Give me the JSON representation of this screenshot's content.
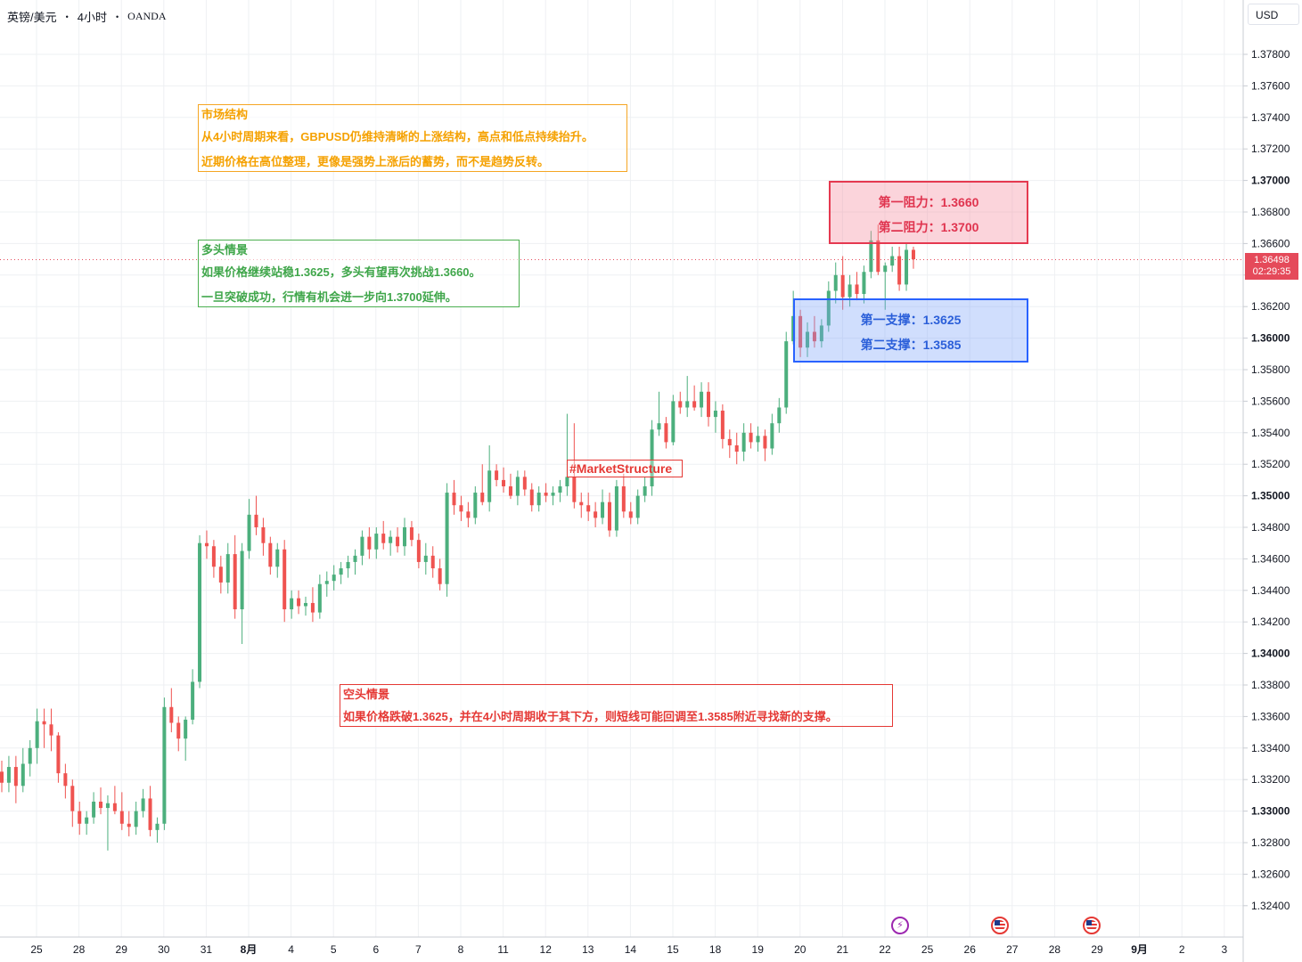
{
  "header": {
    "symbol": "英镑/美元",
    "timeframe": "4小时",
    "broker": "OANDA",
    "separator": "•"
  },
  "currency_button": "USD",
  "last_price": {
    "value": "1.36498",
    "countdown": "02:29:35",
    "color": "#e54a5a"
  },
  "notes": {
    "market_structure": {
      "title": "市场结构",
      "line1": "从4小时周期来看，GBPUSD仍维持清晰的上涨结构，高点和低点持续抬升。",
      "line2": "近期价格在高位整理，更像是强势上涨后的蓄势，而不是趋势反转。",
      "color": "#f5a100"
    },
    "bull": {
      "title": "多头情景",
      "line1": "如果价格继续站稳1.3625，多头有望再次挑战1.3660。",
      "line2": "一旦突破成功，行情有机会进一步向1.3700延伸。",
      "color": "#3fa64a"
    },
    "bear": {
      "title": "空头情景",
      "line1": "如果价格跌破1.3625，并在4小时周期收于其下方，则短线可能回调至1.3585附近寻找新的支撑。",
      "color": "#e53935"
    }
  },
  "zones": {
    "resistance": {
      "line1_label": "第一阻力：",
      "line1_value": "1.3660",
      "line2_label": "第二阻力：",
      "line2_value": "1.3700",
      "color": "#e0344f"
    },
    "support": {
      "line1_label": "第一支撑：",
      "line1_value": "1.3625",
      "line2_label": "第二支撑：",
      "line2_value": "1.3585",
      "color": "#2b5fd9"
    }
  },
  "hashtag": "#MarketStructure",
  "events": [
    {
      "icon": "lightning-icon"
    },
    {
      "icon": "us-flag-icon"
    },
    {
      "icon": "us-flag-icon"
    }
  ],
  "chart_data": {
    "type": "candlestick",
    "title": "",
    "xlabel": "",
    "ylabel": "",
    "ylim": [
      1.3223,
      1.3813
    ],
    "up_color": "#26a69a",
    "up_color_shown": "#4caf7d",
    "down_color": "#ef5350",
    "grid": true,
    "y_ticks": [
      "1.37800",
      "1.37600",
      "1.37400",
      "1.37200",
      "1.37000",
      "1.36800",
      "1.36600",
      "1.36400",
      "1.36200",
      "1.36000",
      "1.35800",
      "1.35600",
      "1.35400",
      "1.35200",
      "1.35000",
      "1.34800",
      "1.34600",
      "1.34400",
      "1.34200",
      "1.34000",
      "1.33800",
      "1.33600",
      "1.33400",
      "1.33200",
      "1.33000",
      "1.32800",
      "1.32600",
      "1.32400"
    ],
    "y_ticks_bold": [
      "1.37000",
      "1.36000",
      "1.35000",
      "1.34000",
      "1.33000"
    ],
    "x_ticks": [
      {
        "label": "25",
        "bold": false
      },
      {
        "label": "28",
        "bold": false
      },
      {
        "label": "29",
        "bold": false
      },
      {
        "label": "30",
        "bold": false
      },
      {
        "label": "31",
        "bold": false
      },
      {
        "label": "8月",
        "bold": true
      },
      {
        "label": "4",
        "bold": false
      },
      {
        "label": "5",
        "bold": false
      },
      {
        "label": "6",
        "bold": false
      },
      {
        "label": "7",
        "bold": false
      },
      {
        "label": "8",
        "bold": false
      },
      {
        "label": "11",
        "bold": false
      },
      {
        "label": "12",
        "bold": false
      },
      {
        "label": "13",
        "bold": false
      },
      {
        "label": "14",
        "bold": false
      },
      {
        "label": "15",
        "bold": false
      },
      {
        "label": "18",
        "bold": false
      },
      {
        "label": "19",
        "bold": false
      },
      {
        "label": "20",
        "bold": false
      },
      {
        "label": "21",
        "bold": false
      },
      {
        "label": "22",
        "bold": false
      },
      {
        "label": "25",
        "bold": false
      },
      {
        "label": "26",
        "bold": false
      },
      {
        "label": "27",
        "bold": false
      },
      {
        "label": "28",
        "bold": false
      },
      {
        "label": "29",
        "bold": false
      },
      {
        "label": "9月",
        "bold": true
      },
      {
        "label": "2",
        "bold": false
      },
      {
        "label": "3",
        "bold": false
      }
    ],
    "candles": [
      [
        1.3325,
        1.3332,
        1.3312,
        1.3318
      ],
      [
        1.3318,
        1.3335,
        1.3312,
        1.3328
      ],
      [
        1.3328,
        1.3335,
        1.3305,
        1.3316
      ],
      [
        1.3316,
        1.334,
        1.3312,
        1.333
      ],
      [
        1.333,
        1.3345,
        1.3322,
        1.334
      ],
      [
        1.334,
        1.3365,
        1.333,
        1.3357
      ],
      [
        1.3357,
        1.3365,
        1.334,
        1.3355
      ],
      [
        1.3355,
        1.3365,
        1.3338,
        1.3348
      ],
      [
        1.3348,
        1.335,
        1.3318,
        1.3324
      ],
      [
        1.3324,
        1.333,
        1.3308,
        1.3316
      ],
      [
        1.3316,
        1.332,
        1.329,
        1.33
      ],
      [
        1.33,
        1.3306,
        1.3285,
        1.3292
      ],
      [
        1.3292,
        1.33,
        1.3285,
        1.3296
      ],
      [
        1.3296,
        1.3312,
        1.3292,
        1.3306
      ],
      [
        1.3306,
        1.3315,
        1.3298,
        1.3302
      ],
      [
        1.3302,
        1.331,
        1.3275,
        1.3305
      ],
      [
        1.3305,
        1.3316,
        1.3298,
        1.33
      ],
      [
        1.33,
        1.3312,
        1.3288,
        1.3292
      ],
      [
        1.3292,
        1.33,
        1.3284,
        1.329
      ],
      [
        1.329,
        1.3306,
        1.3285,
        1.33
      ],
      [
        1.33,
        1.3314,
        1.3296,
        1.3308
      ],
      [
        1.3308,
        1.3316,
        1.3284,
        1.3288
      ],
      [
        1.3288,
        1.3296,
        1.328,
        1.3292
      ],
      [
        1.3292,
        1.3372,
        1.3288,
        1.3366
      ],
      [
        1.3366,
        1.3378,
        1.335,
        1.3356
      ],
      [
        1.3356,
        1.336,
        1.3338,
        1.3346
      ],
      [
        1.3346,
        1.336,
        1.3332,
        1.3358
      ],
      [
        1.3358,
        1.339,
        1.3355,
        1.3382
      ],
      [
        1.3382,
        1.3475,
        1.3378,
        1.347
      ],
      [
        1.347,
        1.3478,
        1.346,
        1.3468
      ],
      [
        1.3468,
        1.3472,
        1.3448,
        1.3455
      ],
      [
        1.3455,
        1.3462,
        1.3438,
        1.3445
      ],
      [
        1.3445,
        1.347,
        1.3438,
        1.3463
      ],
      [
        1.3463,
        1.3475,
        1.3422,
        1.3428
      ],
      [
        1.3428,
        1.347,
        1.3406,
        1.3465
      ],
      [
        1.3465,
        1.3498,
        1.346,
        1.3488
      ],
      [
        1.3488,
        1.35,
        1.3475,
        1.348
      ],
      [
        1.348,
        1.3486,
        1.3462,
        1.347
      ],
      [
        1.347,
        1.3474,
        1.345,
        1.3455
      ],
      [
        1.3455,
        1.347,
        1.3448,
        1.3466
      ],
      [
        1.3466,
        1.3472,
        1.342,
        1.3428
      ],
      [
        1.3428,
        1.344,
        1.3422,
        1.3435
      ],
      [
        1.3435,
        1.344,
        1.3425,
        1.343
      ],
      [
        1.343,
        1.3436,
        1.3424,
        1.3432
      ],
      [
        1.3432,
        1.3442,
        1.342,
        1.3426
      ],
      [
        1.3426,
        1.345,
        1.3422,
        1.3444
      ],
      [
        1.3444,
        1.3452,
        1.3436,
        1.3446
      ],
      [
        1.3446,
        1.3456,
        1.344,
        1.345
      ],
      [
        1.345,
        1.3458,
        1.3444,
        1.3454
      ],
      [
        1.3454,
        1.3462,
        1.3448,
        1.3458
      ],
      [
        1.3458,
        1.3466,
        1.345,
        1.3462
      ],
      [
        1.3462,
        1.3478,
        1.3456,
        1.3474
      ],
      [
        1.3474,
        1.348,
        1.346,
        1.3466
      ],
      [
        1.3466,
        1.348,
        1.346,
        1.3476
      ],
      [
        1.3476,
        1.3484,
        1.3466,
        1.347
      ],
      [
        1.347,
        1.3478,
        1.3462,
        1.3474
      ],
      [
        1.3474,
        1.348,
        1.3464,
        1.3468
      ],
      [
        1.3468,
        1.3486,
        1.3462,
        1.348
      ],
      [
        1.348,
        1.3484,
        1.3468,
        1.3472
      ],
      [
        1.3472,
        1.3476,
        1.3454,
        1.3458
      ],
      [
        1.3458,
        1.347,
        1.345,
        1.3462
      ],
      [
        1.3462,
        1.3468,
        1.3448,
        1.3454
      ],
      [
        1.3454,
        1.346,
        1.344,
        1.3444
      ],
      [
        1.3444,
        1.3508,
        1.3436,
        1.3502
      ],
      [
        1.3502,
        1.351,
        1.3488,
        1.3494
      ],
      [
        1.3494,
        1.35,
        1.3484,
        1.349
      ],
      [
        1.349,
        1.3496,
        1.348,
        1.3486
      ],
      [
        1.3486,
        1.3506,
        1.3482,
        1.3502
      ],
      [
        1.3502,
        1.352,
        1.3494,
        1.3496
      ],
      [
        1.3496,
        1.3532,
        1.349,
        1.3516
      ],
      [
        1.3516,
        1.352,
        1.3506,
        1.351
      ],
      [
        1.351,
        1.3518,
        1.3502,
        1.3506
      ],
      [
        1.3506,
        1.3514,
        1.3498,
        1.35
      ],
      [
        1.35,
        1.3516,
        1.3494,
        1.3512
      ],
      [
        1.3512,
        1.3516,
        1.35,
        1.3504
      ],
      [
        1.3504,
        1.3508,
        1.349,
        1.3494
      ],
      [
        1.3494,
        1.3506,
        1.349,
        1.3502
      ],
      [
        1.3502,
        1.3508,
        1.3496,
        1.35
      ],
      [
        1.35,
        1.3506,
        1.3494,
        1.3502
      ],
      [
        1.3502,
        1.351,
        1.3496,
        1.3506
      ],
      [
        1.3506,
        1.3552,
        1.35,
        1.3512
      ],
      [
        1.3512,
        1.3546,
        1.3492,
        1.3496
      ],
      [
        1.3496,
        1.3502,
        1.3486,
        1.3494
      ],
      [
        1.3494,
        1.3502,
        1.3484,
        1.349
      ],
      [
        1.349,
        1.3496,
        1.348,
        1.3486
      ],
      [
        1.3486,
        1.3504,
        1.3482,
        1.3496
      ],
      [
        1.3496,
        1.3502,
        1.3474,
        1.3478
      ],
      [
        1.3478,
        1.351,
        1.3474,
        1.3506
      ],
      [
        1.3506,
        1.3514,
        1.3486,
        1.349
      ],
      [
        1.349,
        1.3496,
        1.3482,
        1.3486
      ],
      [
        1.3486,
        1.3504,
        1.3482,
        1.35
      ],
      [
        1.35,
        1.3512,
        1.3496,
        1.3506
      ],
      [
        1.3506,
        1.3548,
        1.35,
        1.3542
      ],
      [
        1.3542,
        1.3566,
        1.3538,
        1.3546
      ],
      [
        1.3546,
        1.355,
        1.353,
        1.3534
      ],
      [
        1.3534,
        1.3564,
        1.3532,
        1.356
      ],
      [
        1.356,
        1.3566,
        1.3552,
        1.3556
      ],
      [
        1.3556,
        1.3576,
        1.355,
        1.356
      ],
      [
        1.356,
        1.357,
        1.3554,
        1.3556
      ],
      [
        1.3556,
        1.3572,
        1.355,
        1.3566
      ],
      [
        1.3566,
        1.3572,
        1.3544,
        1.355
      ],
      [
        1.355,
        1.356,
        1.354,
        1.3554
      ],
      [
        1.3554,
        1.3558,
        1.353,
        1.3536
      ],
      [
        1.3536,
        1.3542,
        1.3524,
        1.3532
      ],
      [
        1.3532,
        1.354,
        1.352,
        1.3528
      ],
      [
        1.3528,
        1.3546,
        1.3522,
        1.354
      ],
      [
        1.354,
        1.3546,
        1.353,
        1.3534
      ],
      [
        1.3534,
        1.3544,
        1.3528,
        1.3538
      ],
      [
        1.3538,
        1.3542,
        1.3522,
        1.353
      ],
      [
        1.353,
        1.3552,
        1.3526,
        1.3546
      ],
      [
        1.3546,
        1.3562,
        1.354,
        1.3556
      ],
      [
        1.3556,
        1.3604,
        1.3552,
        1.3598
      ],
      [
        1.3598,
        1.363,
        1.3596,
        1.3614
      ],
      [
        1.3614,
        1.3618,
        1.3588,
        1.3594
      ],
      [
        1.3594,
        1.361,
        1.3588,
        1.3604
      ],
      [
        1.3604,
        1.3614,
        1.3594,
        1.3598
      ],
      [
        1.3598,
        1.3612,
        1.3594,
        1.3608
      ],
      [
        1.3608,
        1.3636,
        1.3604,
        1.363
      ],
      [
        1.363,
        1.3648,
        1.3622,
        1.364
      ],
      [
        1.364,
        1.3652,
        1.3618,
        1.3626
      ],
      [
        1.3626,
        1.364,
        1.362,
        1.3634
      ],
      [
        1.3634,
        1.3642,
        1.3624,
        1.3628
      ],
      [
        1.3628,
        1.3646,
        1.3622,
        1.3642
      ],
      [
        1.3642,
        1.3668,
        1.3638,
        1.3662
      ],
      [
        1.3662,
        1.3672,
        1.364,
        1.3642
      ],
      [
        1.3642,
        1.3648,
        1.3618,
        1.3646
      ],
      [
        1.3646,
        1.3658,
        1.3642,
        1.3652
      ],
      [
        1.3652,
        1.3658,
        1.363,
        1.3634
      ],
      [
        1.3634,
        1.366,
        1.363,
        1.3656
      ],
      [
        1.3656,
        1.3658,
        1.3644,
        1.365
      ]
    ]
  }
}
